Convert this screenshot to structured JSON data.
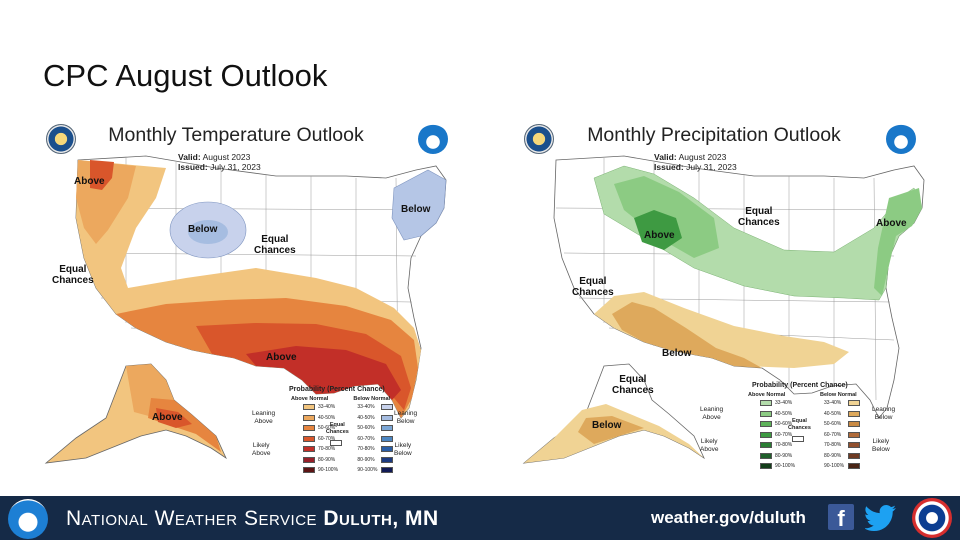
{
  "slide": {
    "title": "CPC August Outlook"
  },
  "temperature_map": {
    "title": "Monthly Temperature Outlook",
    "valid_label": "Valid:",
    "valid_value": "August 2023",
    "issued_label": "Issued:",
    "issued_value": "July 31, 2023",
    "regions": {
      "above_nw": "Above",
      "below_north": "Below",
      "below_ne": "Below",
      "equal_center": "Equal\nChances",
      "equal_west": "Equal\nChances",
      "above_south": "Above",
      "above_alaska": "Above"
    },
    "legend": {
      "title": "Probability (Percent Chance)",
      "left_header": "Above Normal",
      "right_header": "Below Normal",
      "leaning_left": "Leaning\nAbove",
      "likely_left": "Likely\nAbove",
      "leaning_right": "Leaning\nBelow",
      "likely_right": "Likely\nBelow",
      "equal": "Equal\nChances",
      "ranges": [
        "33-40%",
        "40-50%",
        "50-60%",
        "60-70%",
        "70-80%",
        "80-90%",
        "90-100%"
      ],
      "left_colors": [
        "#f2c57f",
        "#eca85e",
        "#e6853f",
        "#d9562b",
        "#c22f28",
        "#96202a",
        "#5c1414"
      ],
      "right_colors": [
        "#c8d2ec",
        "#a6bde1",
        "#7ca7d6",
        "#4c86c2",
        "#2a5ea6",
        "#1c3a80",
        "#111a55"
      ]
    }
  },
  "precipitation_map": {
    "title": "Monthly Precipitation Outlook",
    "valid_label": "Valid:",
    "valid_value": "August 2023",
    "issued_label": "Issued:",
    "issued_value": "July 31, 2023",
    "regions": {
      "above_north": "Above",
      "above_east": "Above",
      "equal_north": "Equal\nChances",
      "equal_west": "Equal\nChances",
      "below_south": "Below",
      "equal_alaska": "Equal\nChances",
      "below_alaska": "Below"
    },
    "legend": {
      "title": "Probability (Percent Chance)",
      "left_header": "Above Normal",
      "right_header": "Below Normal",
      "leaning_left": "Leaning\nAbove",
      "likely_left": "Likely\nAbove",
      "leaning_right": "Leaning\nBelow",
      "likely_right": "Likely\nBelow",
      "equal": "Equal\nChances",
      "ranges": [
        "33-40%",
        "40-50%",
        "50-60%",
        "60-70%",
        "70-80%",
        "80-90%",
        "90-100%"
      ],
      "left_colors": [
        "#b3dcab",
        "#8ccb83",
        "#5eb35a",
        "#3e9a42",
        "#2a7d33",
        "#1f5f2a",
        "#123d19"
      ],
      "right_colors": [
        "#f0d394",
        "#dea95c",
        "#c98a44",
        "#b06b3a",
        "#91502e",
        "#6e3a22",
        "#4a2515"
      ]
    }
  },
  "footer": {
    "org_prefix": "National Weather Service",
    "office": "Duluth, MN",
    "url": "weather.gov/duluth",
    "facebook_glyph": "f"
  },
  "colors": {
    "footer_bg": "#152a47",
    "temp_above_light": "#f2c57f",
    "temp_above_mid": "#e6853f",
    "temp_above_dark": "#c22f28",
    "temp_below": "#b5c6e6",
    "precip_above_light": "#b3dcab",
    "precip_above_mid": "#8ccb83",
    "precip_above_dark": "#3e9a42",
    "precip_below_light": "#f0d394",
    "precip_below_mid": "#dea95c"
  }
}
